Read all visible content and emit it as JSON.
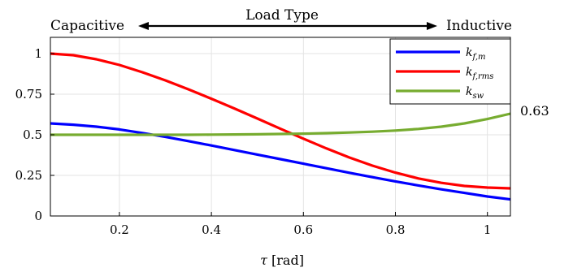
{
  "header": {
    "left_label": "Capacitive",
    "center_label": "Load Type",
    "right_label": "Inductive"
  },
  "chart_data": {
    "type": "line",
    "xlabel_symbol": "τ",
    "xlabel_unit": "[rad]",
    "ylabel": "",
    "xlim": [
      0.05,
      1.05
    ],
    "ylim": [
      0,
      1.1
    ],
    "xticks": [
      0.2,
      0.4,
      0.6,
      0.8,
      1
    ],
    "xtick_labels": [
      "0.2",
      "0.4",
      "0.6",
      "0.8",
      "1"
    ],
    "yticks": [
      0,
      0.25,
      0.5,
      0.75,
      1
    ],
    "ytick_labels": [
      "0",
      "0.25",
      "0.5",
      "0.75",
      "1"
    ],
    "grid": true,
    "legend_placement": "top-right",
    "annotation": {
      "text": "0.63",
      "x": 1.05,
      "y": 0.63
    },
    "x": [
      0.05,
      0.1,
      0.15,
      0.2,
      0.25,
      0.3,
      0.35,
      0.4,
      0.45,
      0.5,
      0.55,
      0.6,
      0.65,
      0.7,
      0.75,
      0.8,
      0.85,
      0.9,
      0.95,
      1.0,
      1.05
    ],
    "series": [
      {
        "name": "k_f,m",
        "symbol": "k",
        "subscript": "f,m",
        "color": "#0000ff",
        "values": [
          0.57,
          0.562,
          0.55,
          0.533,
          0.511,
          0.487,
          0.461,
          0.434,
          0.406,
          0.378,
          0.35,
          0.322,
          0.294,
          0.266,
          0.239,
          0.213,
          0.188,
          0.164,
          0.142,
          0.12,
          0.102
        ]
      },
      {
        "name": "k_f,rms",
        "symbol": "k",
        "subscript": "f,rms",
        "color": "#ff0000",
        "values": [
          1.0,
          0.99,
          0.965,
          0.93,
          0.885,
          0.835,
          0.78,
          0.722,
          0.662,
          0.6,
          0.537,
          0.476,
          0.416,
          0.36,
          0.31,
          0.267,
          0.231,
          0.204,
          0.185,
          0.175,
          0.17
        ]
      },
      {
        "name": "k_sw",
        "symbol": "k",
        "subscript": "sw",
        "color": "#77ac30",
        "values": [
          0.5,
          0.5,
          0.5,
          0.5,
          0.5,
          0.5,
          0.5,
          0.501,
          0.502,
          0.503,
          0.505,
          0.507,
          0.51,
          0.514,
          0.519,
          0.526,
          0.536,
          0.55,
          0.57,
          0.597,
          0.63
        ]
      }
    ]
  }
}
